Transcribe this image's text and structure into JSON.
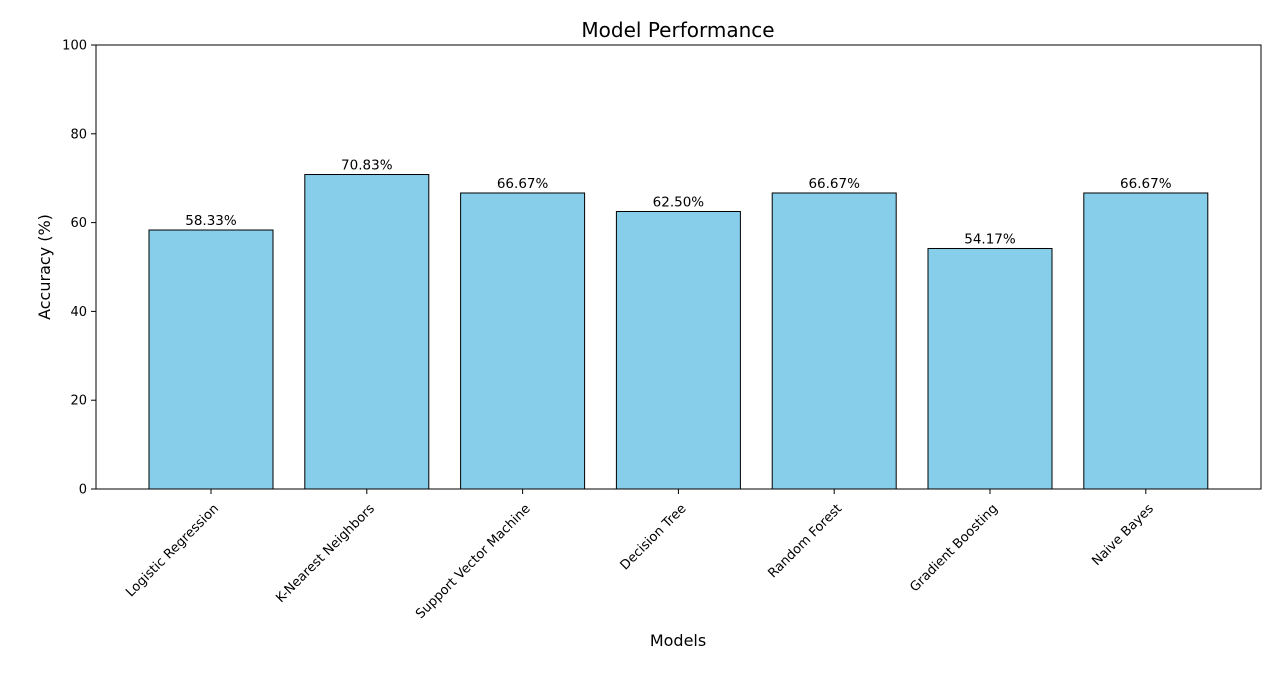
{
  "chart_data": {
    "type": "bar",
    "title": "Model Performance",
    "xlabel": "Models",
    "ylabel": "Accuracy (%)",
    "ylim": [
      0,
      100
    ],
    "yticks": [
      0,
      20,
      40,
      60,
      80,
      100
    ],
    "grid": false,
    "categories": [
      "Logistic Regression",
      "K-Nearest Neighbors",
      "Support Vector Machine",
      "Decision Tree",
      "Random Forest",
      "Gradient Boosting",
      "Naive Bayes"
    ],
    "values": [
      58.33,
      70.83,
      66.67,
      62.5,
      66.67,
      54.17,
      66.67
    ],
    "data_labels": [
      "58.33%",
      "70.83%",
      "66.67%",
      "62.50%",
      "66.67%",
      "54.17%",
      "66.67%"
    ],
    "colors": {
      "bar_fill": "#87CEEB",
      "bar_edge": "#000000"
    }
  }
}
